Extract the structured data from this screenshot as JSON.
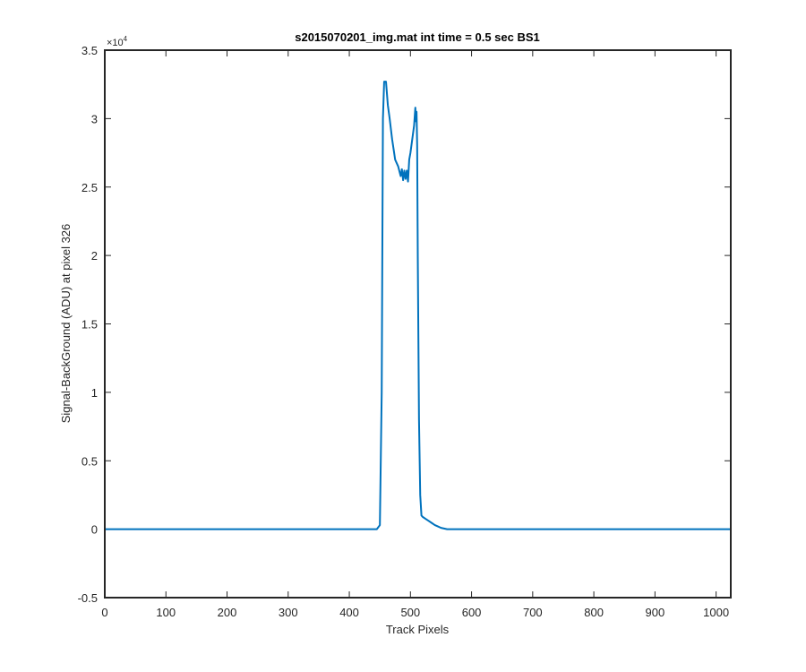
{
  "chart_data": {
    "type": "line",
    "title": "s2015070201_img.mat int time = 0.5 sec   BS1",
    "xlabel": "Track Pixels",
    "ylabel": "Signal-BackGround (ADU) at pixel 326",
    "xlim": [
      0,
      1024
    ],
    "ylim": [
      -5000,
      35000
    ],
    "xticks": [
      0,
      100,
      200,
      300,
      400,
      500,
      600,
      700,
      800,
      900,
      1000
    ],
    "yticks": [
      -5000,
      0,
      5000,
      10000,
      15000,
      20000,
      25000,
      30000,
      35000
    ],
    "ytick_labels": [
      "-0.5",
      "0",
      "0.5",
      "1",
      "1.5",
      "2",
      "2.5",
      "3",
      "3.5"
    ],
    "y_exponent_label": "×10",
    "y_exponent_power": "4",
    "grid": false,
    "line_color": "#0072BD",
    "axis_color": "#262626",
    "series": [
      {
        "x": [
          0,
          100,
          200,
          300,
          400,
          445,
          450,
          453,
          455,
          457,
          460,
          463,
          466,
          470,
          475,
          480,
          484,
          486,
          488,
          490,
          492,
          494,
          496,
          498,
          500,
          503,
          506,
          508,
          509,
          510,
          511,
          512,
          514,
          516,
          518,
          520,
          525,
          530,
          535,
          540,
          545,
          550,
          555,
          560,
          565,
          570,
          575,
          600,
          700,
          800,
          900,
          1000,
          1024
        ],
        "y": [
          0,
          0,
          0,
          0,
          0,
          0,
          300,
          10000,
          30000,
          32700,
          32700,
          31000,
          30000,
          28500,
          27000,
          26500,
          25800,
          26300,
          25500,
          26200,
          25600,
          26200,
          25400,
          27000,
          27500,
          28500,
          29500,
          30800,
          29800,
          30500,
          28000,
          20000,
          8000,
          2500,
          1000,
          900,
          750,
          600,
          450,
          300,
          200,
          100,
          50,
          0,
          0,
          0,
          0,
          0,
          0,
          0,
          0,
          0,
          0
        ]
      }
    ]
  }
}
